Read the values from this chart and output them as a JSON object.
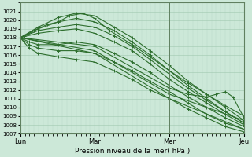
{
  "xlabel": "Pression niveau de la mer( hPa )",
  "bg_color": "#cce8d8",
  "grid_color_major": "#a0c8b0",
  "grid_color_minor": "#b8d8c8",
  "line_color": "#2d6e2d",
  "ylim": [
    1007,
    1022
  ],
  "yticks": [
    1007,
    1008,
    1009,
    1010,
    1011,
    1012,
    1013,
    1014,
    1015,
    1016,
    1017,
    1018,
    1019,
    1020,
    1021
  ],
  "day_labels": [
    "Lun",
    "Mar",
    "Mer",
    "Jeu"
  ],
  "day_positions": [
    0.0,
    0.333,
    0.667,
    1.0
  ],
  "series": [
    [
      [
        0.0,
        1018.0
      ],
      [
        0.08,
        1019.2
      ],
      [
        0.17,
        1020.3
      ],
      [
        0.25,
        1020.8
      ],
      [
        0.333,
        1020.5
      ],
      [
        0.42,
        1019.2
      ],
      [
        0.5,
        1018.0
      ],
      [
        0.58,
        1016.5
      ],
      [
        0.667,
        1014.8
      ],
      [
        0.75,
        1013.0
      ],
      [
        0.833,
        1011.5
      ],
      [
        0.917,
        1010.0
      ],
      [
        1.0,
        1008.5
      ]
    ],
    [
      [
        0.0,
        1018.0
      ],
      [
        0.08,
        1019.0
      ],
      [
        0.17,
        1019.8
      ],
      [
        0.25,
        1020.2
      ],
      [
        0.333,
        1019.8
      ],
      [
        0.42,
        1018.8
      ],
      [
        0.5,
        1017.5
      ],
      [
        0.58,
        1016.0
      ],
      [
        0.667,
        1014.2
      ],
      [
        0.75,
        1012.5
      ],
      [
        0.833,
        1011.0
      ],
      [
        0.917,
        1009.5
      ],
      [
        1.0,
        1008.2
      ]
    ],
    [
      [
        0.0,
        1018.0
      ],
      [
        0.08,
        1018.8
      ],
      [
        0.17,
        1019.2
      ],
      [
        0.25,
        1019.5
      ],
      [
        0.333,
        1019.2
      ],
      [
        0.42,
        1018.2
      ],
      [
        0.5,
        1017.0
      ],
      [
        0.58,
        1015.5
      ],
      [
        0.667,
        1013.8
      ],
      [
        0.75,
        1012.2
      ],
      [
        0.833,
        1010.8
      ],
      [
        0.917,
        1009.5
      ],
      [
        1.0,
        1008.2
      ]
    ],
    [
      [
        0.0,
        1018.0
      ],
      [
        0.08,
        1018.5
      ],
      [
        0.17,
        1018.8
      ],
      [
        0.25,
        1019.0
      ],
      [
        0.333,
        1018.5
      ],
      [
        0.42,
        1017.5
      ],
      [
        0.5,
        1016.5
      ],
      [
        0.58,
        1015.0
      ],
      [
        0.667,
        1013.2
      ],
      [
        0.75,
        1011.8
      ],
      [
        0.833,
        1010.5
      ],
      [
        0.917,
        1009.2
      ],
      [
        1.0,
        1008.0
      ]
    ],
    [
      [
        0.0,
        1018.0
      ],
      [
        0.04,
        1017.5
      ],
      [
        0.08,
        1017.2
      ],
      [
        0.17,
        1017.2
      ],
      [
        0.25,
        1017.5
      ],
      [
        0.333,
        1017.2
      ],
      [
        0.42,
        1016.2
      ],
      [
        0.5,
        1015.2
      ],
      [
        0.58,
        1014.0
      ],
      [
        0.667,
        1012.5
      ],
      [
        0.75,
        1011.2
      ],
      [
        0.833,
        1010.0
      ],
      [
        0.917,
        1008.8
      ],
      [
        1.0,
        1007.8
      ]
    ],
    [
      [
        0.0,
        1018.0
      ],
      [
        0.04,
        1017.2
      ],
      [
        0.08,
        1016.8
      ],
      [
        0.17,
        1016.5
      ],
      [
        0.25,
        1016.5
      ],
      [
        0.333,
        1016.2
      ],
      [
        0.42,
        1015.2
      ],
      [
        0.5,
        1014.2
      ],
      [
        0.58,
        1013.0
      ],
      [
        0.667,
        1011.8
      ],
      [
        0.75,
        1010.5
      ],
      [
        0.833,
        1009.2
      ],
      [
        0.917,
        1008.2
      ],
      [
        1.0,
        1007.5
      ]
    ],
    [
      [
        0.0,
        1018.0
      ],
      [
        0.04,
        1016.8
      ],
      [
        0.08,
        1016.2
      ],
      [
        0.17,
        1015.8
      ],
      [
        0.25,
        1015.5
      ],
      [
        0.333,
        1015.2
      ],
      [
        0.42,
        1014.2
      ],
      [
        0.5,
        1013.2
      ],
      [
        0.58,
        1012.0
      ],
      [
        0.667,
        1011.0
      ],
      [
        0.75,
        1009.8
      ],
      [
        0.833,
        1008.8
      ],
      [
        0.917,
        1007.8
      ],
      [
        1.0,
        1007.2
      ]
    ],
    [
      [
        0.0,
        1018.0
      ],
      [
        0.02,
        1018.2
      ],
      [
        0.06,
        1018.8
      ],
      [
        0.12,
        1019.5
      ],
      [
        0.17,
        1019.8
      ],
      [
        0.22,
        1020.5
      ],
      [
        0.28,
        1020.8
      ],
      [
        0.333,
        1020.2
      ],
      [
        0.4,
        1018.8
      ],
      [
        0.5,
        1017.2
      ],
      [
        0.58,
        1015.8
      ],
      [
        0.667,
        1014.2
      ],
      [
        0.75,
        1012.8
      ],
      [
        0.833,
        1011.5
      ],
      [
        0.917,
        1010.2
      ],
      [
        1.0,
        1009.0
      ]
    ],
    [
      [
        0.0,
        1018.0
      ],
      [
        0.333,
        1017.0
      ],
      [
        0.667,
        1012.2
      ],
      [
        0.75,
        1011.5
      ],
      [
        0.833,
        1011.2
      ],
      [
        0.875,
        1011.5
      ],
      [
        0.917,
        1011.8
      ],
      [
        0.95,
        1011.2
      ],
      [
        1.0,
        1008.8
      ]
    ],
    [
      [
        0.0,
        1018.0
      ],
      [
        0.333,
        1016.5
      ],
      [
        0.667,
        1011.5
      ],
      [
        1.0,
        1008.5
      ]
    ],
    [
      [
        0.0,
        1018.0
      ],
      [
        0.333,
        1016.2
      ],
      [
        0.667,
        1011.0
      ],
      [
        1.0,
        1007.5
      ]
    ]
  ]
}
